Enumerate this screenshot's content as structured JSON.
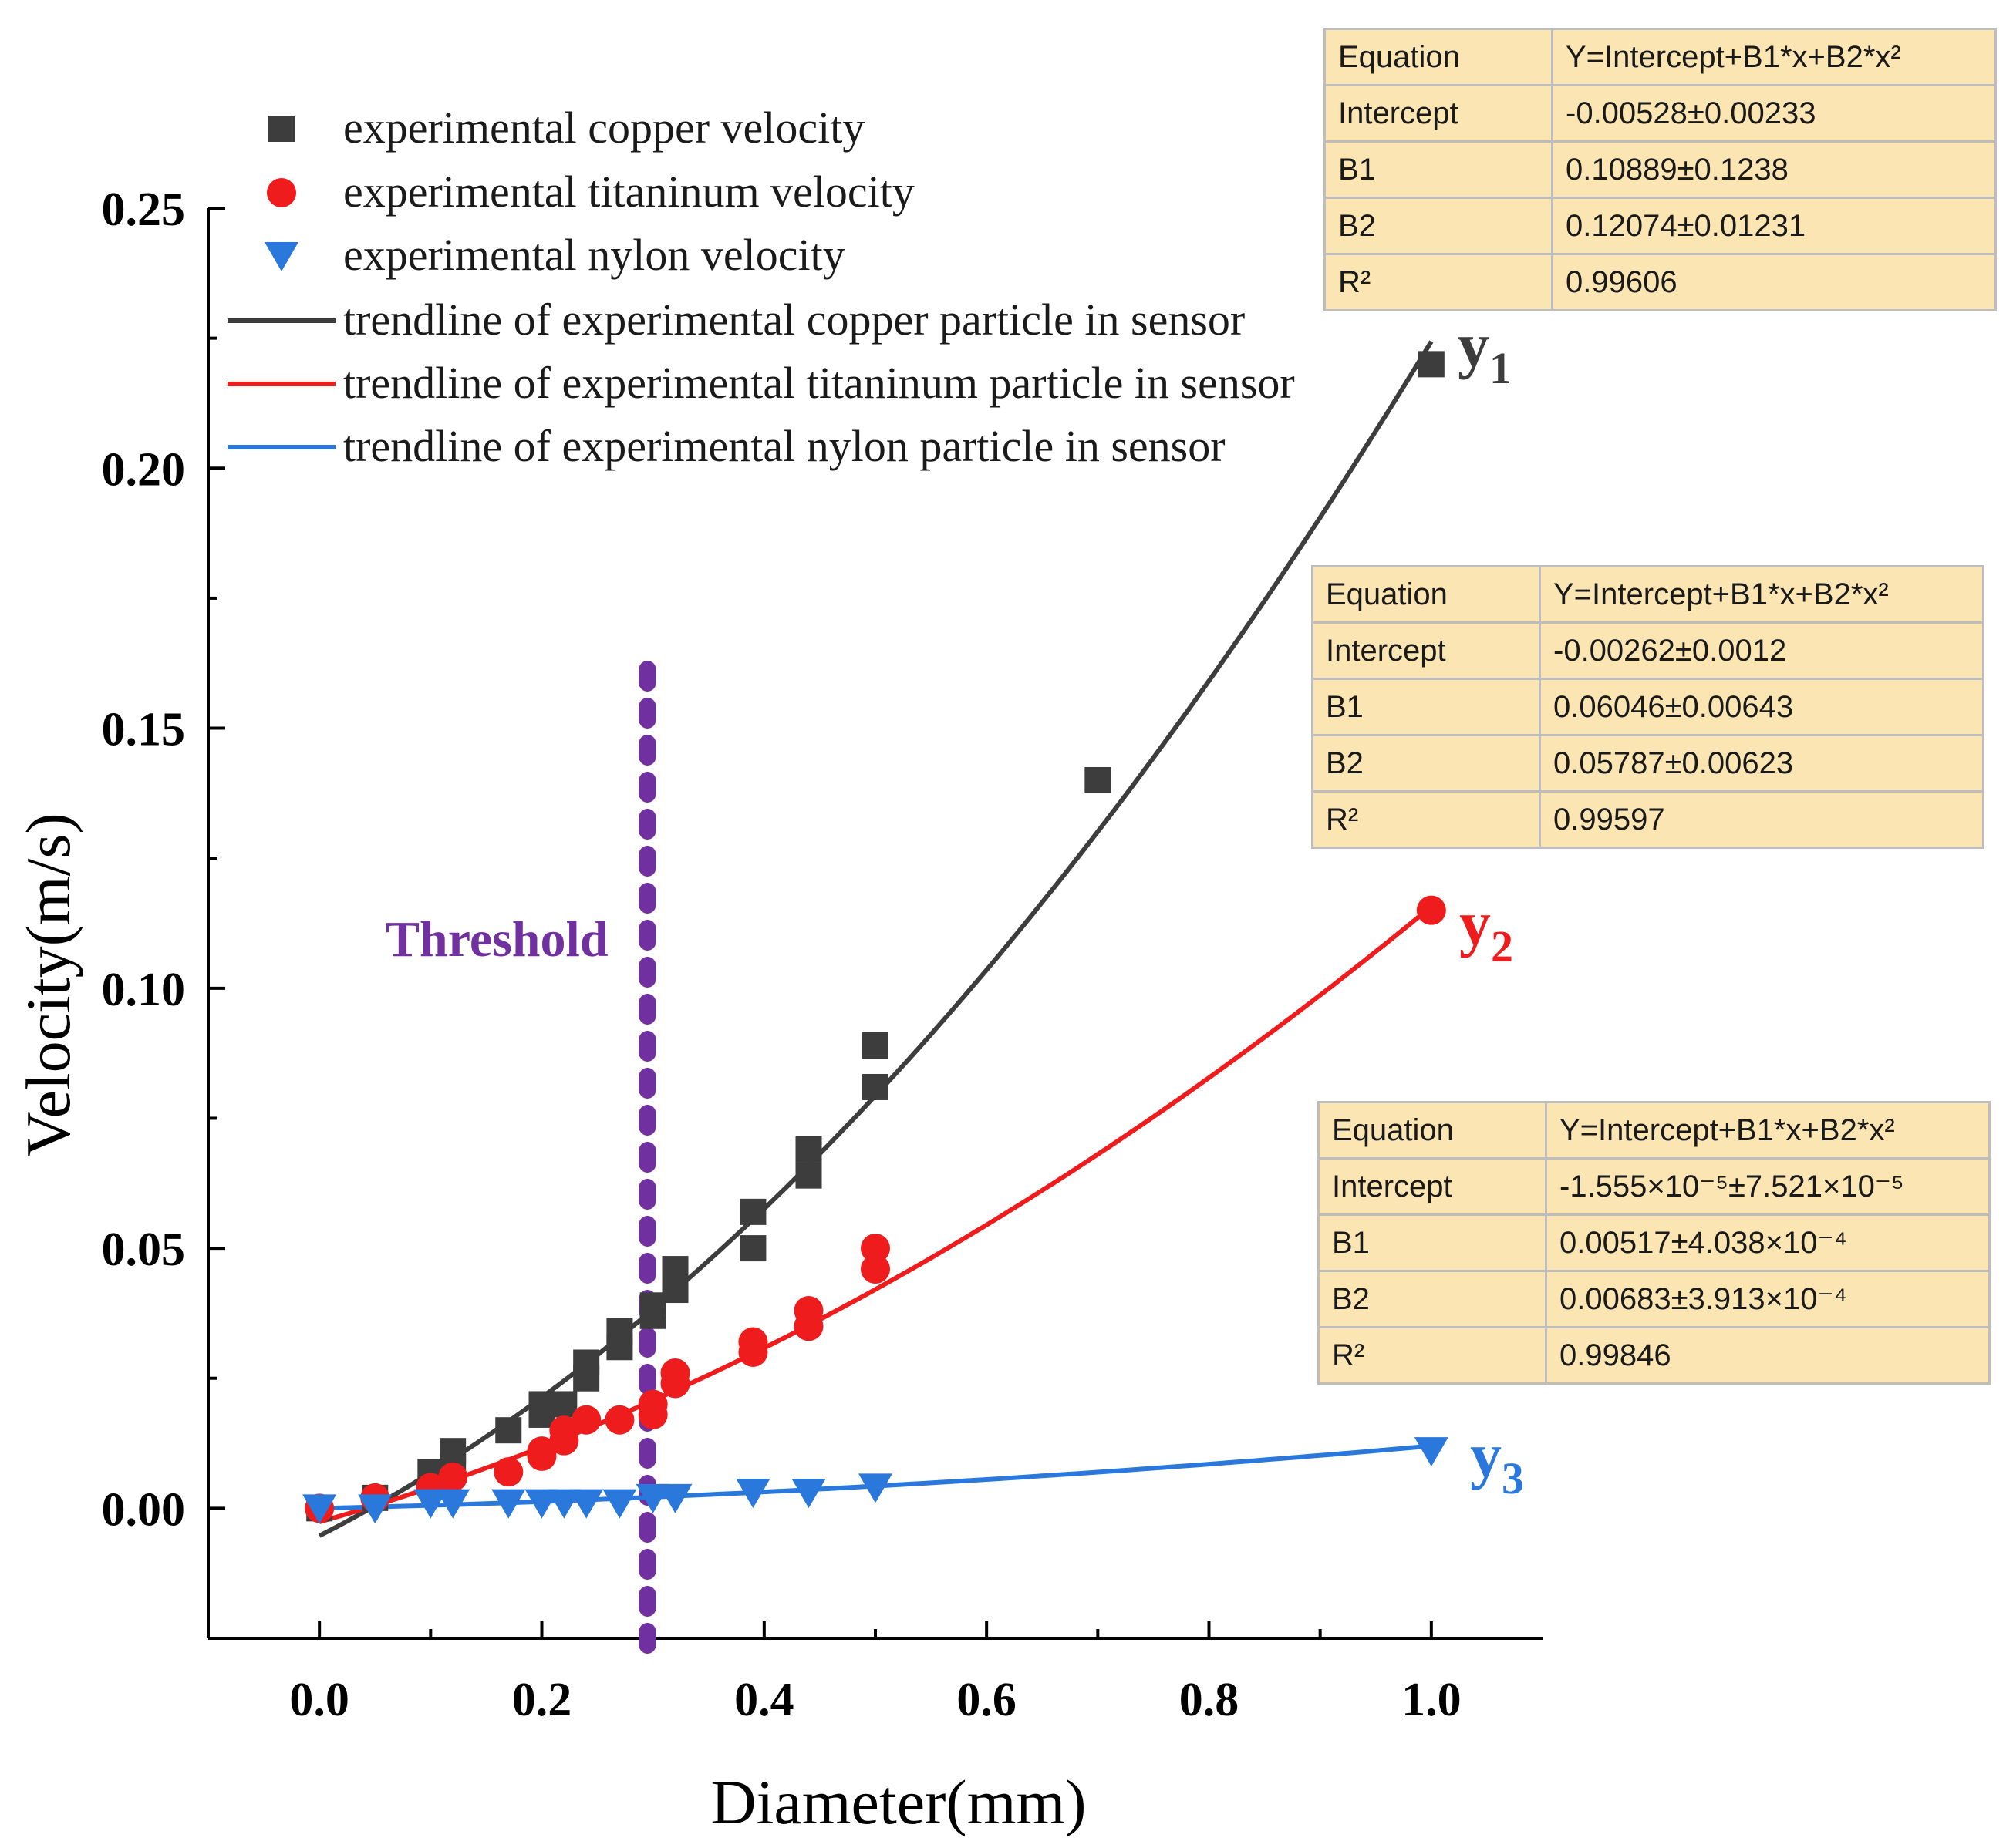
{
  "chart_data": {
    "type": "scatter",
    "xlabel": "Diameter(mm)",
    "ylabel": "Velocity(m/s)",
    "xlim": [
      -0.1,
      1.1
    ],
    "ylim": [
      -0.025,
      0.25
    ],
    "x_ticks": [
      0.0,
      0.2,
      0.4,
      0.6,
      0.8,
      1.0
    ],
    "x_tick_labels": [
      "0.0",
      "0.2",
      "0.4",
      "0.6",
      "0.8",
      "1.0"
    ],
    "y_ticks": [
      0.0,
      0.05,
      0.1,
      0.15,
      0.2,
      0.25
    ],
    "y_tick_labels": [
      "0.00",
      "0.05",
      "0.10",
      "0.15",
      "0.20",
      "0.25"
    ],
    "grid": false,
    "legend_position": "top-left",
    "series": [
      {
        "name": "experimental copper velocity",
        "marker": "square",
        "color": "#3d3d3d",
        "points": [
          [
            0.0,
            0.0
          ],
          [
            0.05,
            0.002
          ],
          [
            0.1,
            0.007
          ],
          [
            0.12,
            0.011
          ],
          [
            0.12,
            0.008
          ],
          [
            0.17,
            0.015
          ],
          [
            0.2,
            0.02
          ],
          [
            0.2,
            0.018
          ],
          [
            0.22,
            0.02
          ],
          [
            0.24,
            0.028
          ],
          [
            0.24,
            0.025
          ],
          [
            0.27,
            0.034
          ],
          [
            0.27,
            0.031
          ],
          [
            0.3,
            0.039
          ],
          [
            0.3,
            0.037
          ],
          [
            0.32,
            0.046
          ],
          [
            0.32,
            0.042
          ],
          [
            0.39,
            0.057
          ],
          [
            0.39,
            0.05
          ],
          [
            0.44,
            0.069
          ],
          [
            0.44,
            0.064
          ],
          [
            0.5,
            0.089
          ],
          [
            0.5,
            0.081
          ],
          [
            0.7,
            0.14
          ],
          [
            1.0,
            0.22
          ]
        ]
      },
      {
        "name": "experimental  titaninum velocity",
        "marker": "circle",
        "color": "#ee1c1c",
        "points": [
          [
            0.0,
            0.0
          ],
          [
            0.05,
            0.002
          ],
          [
            0.1,
            0.004
          ],
          [
            0.12,
            0.006
          ],
          [
            0.17,
            0.007
          ],
          [
            0.2,
            0.01
          ],
          [
            0.2,
            0.011
          ],
          [
            0.22,
            0.013
          ],
          [
            0.22,
            0.015
          ],
          [
            0.24,
            0.017
          ],
          [
            0.27,
            0.017
          ],
          [
            0.3,
            0.018
          ],
          [
            0.3,
            0.02
          ],
          [
            0.32,
            0.024
          ],
          [
            0.32,
            0.026
          ],
          [
            0.39,
            0.03
          ],
          [
            0.39,
            0.032
          ],
          [
            0.44,
            0.035
          ],
          [
            0.44,
            0.038
          ],
          [
            0.5,
            0.046
          ],
          [
            0.5,
            0.05
          ],
          [
            1.0,
            0.115
          ]
        ]
      },
      {
        "name": "experimental nylon velocity",
        "marker": "triangle-down",
        "color": "#2a78dc",
        "points": [
          [
            0.0,
            0.0
          ],
          [
            0.05,
            0.0
          ],
          [
            0.1,
            0.001
          ],
          [
            0.12,
            0.001
          ],
          [
            0.17,
            0.001
          ],
          [
            0.2,
            0.001
          ],
          [
            0.22,
            0.001
          ],
          [
            0.24,
            0.001
          ],
          [
            0.27,
            0.001
          ],
          [
            0.3,
            0.002
          ],
          [
            0.32,
            0.002
          ],
          [
            0.39,
            0.003
          ],
          [
            0.44,
            0.003
          ],
          [
            0.5,
            0.004
          ],
          [
            1.0,
            0.011
          ]
        ]
      }
    ],
    "trendlines": [
      {
        "name": "trendline of experimental copper particle in sensor",
        "color": "#3d3d3d",
        "intercept": -0.00528,
        "b1": 0.10889,
        "b2": 0.12074,
        "x_range": [
          0.0,
          1.0
        ],
        "end_label": "y",
        "end_label_sub": "1"
      },
      {
        "name": "trendline of experimental titaninum particle in sensor",
        "color": "#ee1c1c",
        "intercept": -0.00262,
        "b1": 0.06046,
        "b2": 0.05787,
        "x_range": [
          0.0,
          1.0
        ],
        "end_label": "y",
        "end_label_sub": "2"
      },
      {
        "name": "trendline of experimental nylon particle in sensor",
        "color": "#2a78dc",
        "intercept": -1.555e-05,
        "b1": 0.00517,
        "b2": 0.00683,
        "x_range": [
          0.0,
          1.0
        ],
        "end_label": "y",
        "end_label_sub": "3"
      }
    ],
    "threshold": {
      "label": "Threshold",
      "x": 0.295,
      "color": "#7030a0"
    }
  },
  "fit_tables": [
    {
      "rows": [
        {
          "key": "Equation",
          "value": "Y=Intercept+B1*x+B2*x²"
        },
        {
          "key": "Intercept",
          "value": "-0.00528±0.00233"
        },
        {
          "key": "B1",
          "value": "0.10889±0.1238"
        },
        {
          "key": "B2",
          "value": "0.12074±0.01231"
        },
        {
          "key": "R²",
          "value": "0.99606"
        }
      ]
    },
    {
      "rows": [
        {
          "key": "Equation",
          "value": "Y=Intercept+B1*x+B2*x²"
        },
        {
          "key": "Intercept",
          "value": "-0.00262±0.0012"
        },
        {
          "key": "B1",
          "value": "0.06046±0.00643"
        },
        {
          "key": "B2",
          "value": "0.05787±0.00623"
        },
        {
          "key": "R²",
          "value": "0.99597"
        }
      ]
    },
    {
      "rows": [
        {
          "key": "Equation",
          "value": "Y=Intercept+B1*x+B2*x²"
        },
        {
          "key": "Intercept",
          "value": "-1.555×10⁻⁵±7.521×10⁻⁵"
        },
        {
          "key": "B1",
          "value": "0.00517±4.038×10⁻⁴"
        },
        {
          "key": "B2",
          "value": "0.00683±3.913×10⁻⁴"
        },
        {
          "key": "R²",
          "value": "0.99846"
        }
      ]
    }
  ]
}
